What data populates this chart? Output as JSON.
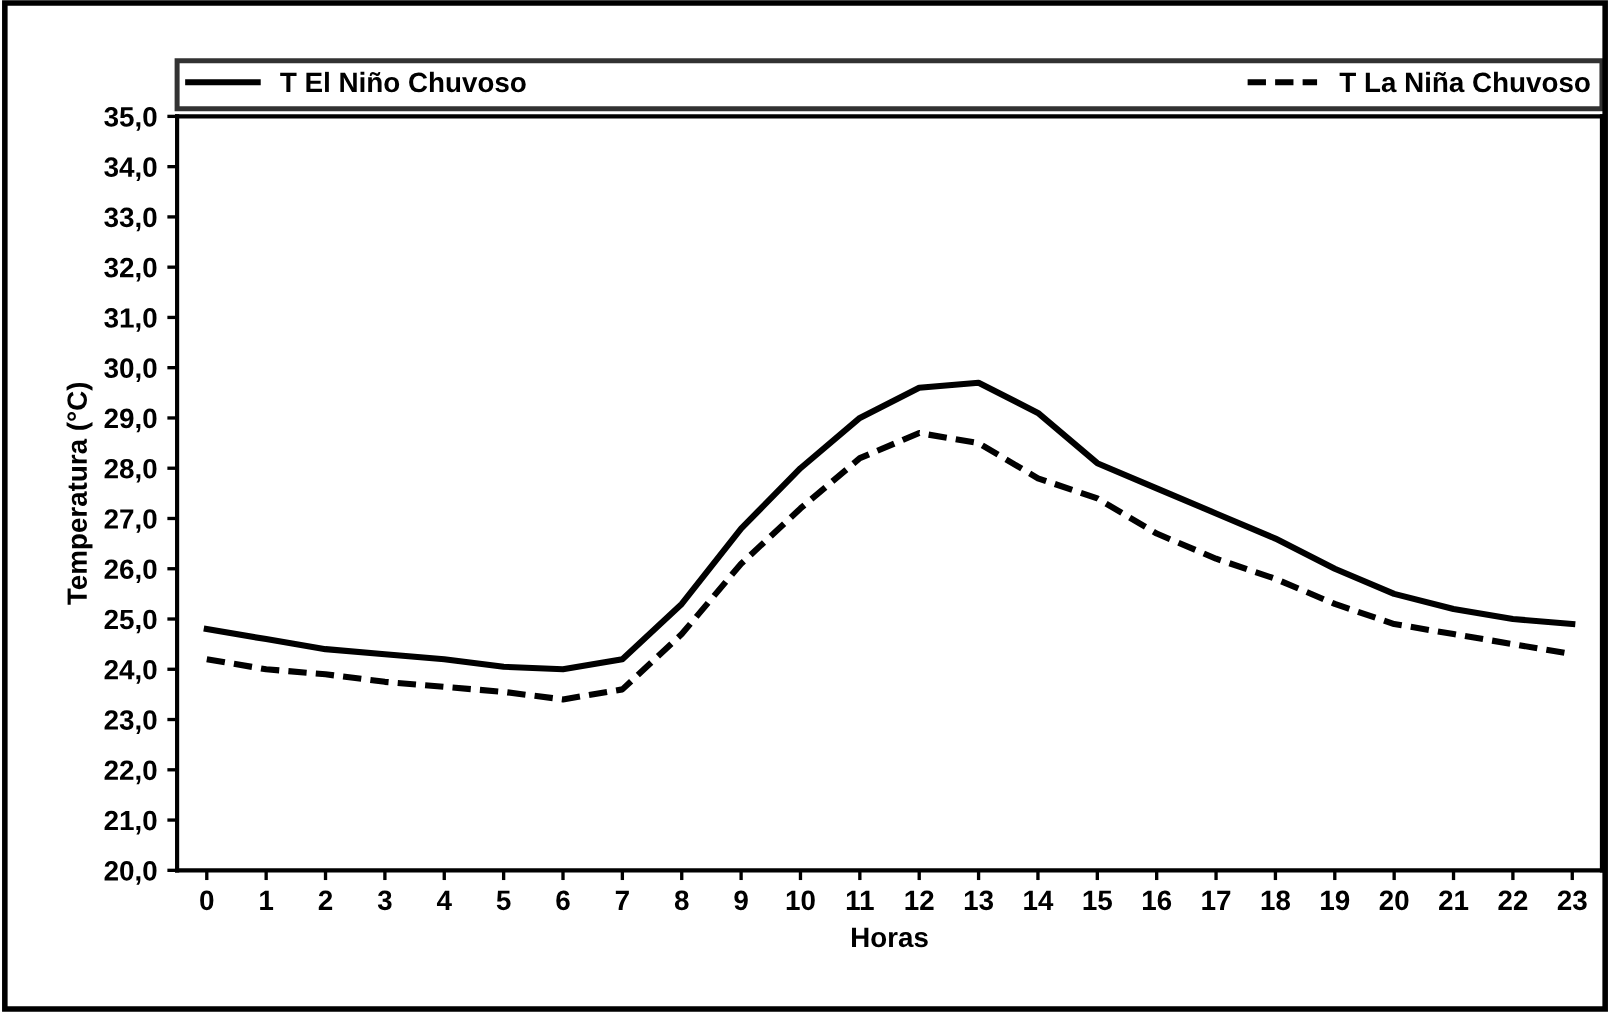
{
  "chart_data": {
    "type": "line",
    "xlabel": "Horas",
    "ylabel": "Temperatura (°C)",
    "categories": [
      "0",
      "1",
      "2",
      "3",
      "4",
      "5",
      "6",
      "7",
      "8",
      "9",
      "10",
      "11",
      "12",
      "13",
      "14",
      "15",
      "16",
      "17",
      "18",
      "19",
      "20",
      "21",
      "22",
      "23"
    ],
    "series": [
      {
        "name": "T El Niño Chuvoso",
        "color": "#000000",
        "line_style": "solid",
        "values": [
          24.8,
          24.6,
          24.4,
          24.3,
          24.2,
          24.05,
          24.0,
          24.2,
          25.3,
          26.8,
          28.0,
          29.0,
          29.6,
          29.7,
          29.1,
          28.1,
          27.6,
          27.1,
          26.6,
          26.0,
          25.5,
          25.2,
          25.0,
          24.9
        ]
      },
      {
        "name": "T La Niña Chuvoso",
        "color": "#000000",
        "line_style": "dashed",
        "values": [
          24.2,
          24.0,
          23.9,
          23.75,
          23.65,
          23.55,
          23.4,
          23.6,
          24.7,
          26.1,
          27.2,
          28.2,
          28.7,
          28.5,
          27.8,
          27.4,
          26.7,
          26.2,
          25.8,
          25.3,
          24.9,
          24.7,
          24.5,
          24.3
        ]
      }
    ],
    "ylim": [
      20,
      35
    ],
    "yticks": [
      {
        "value": 20,
        "label": "20,0"
      },
      {
        "value": 21,
        "label": "21,0"
      },
      {
        "value": 22,
        "label": "22,0"
      },
      {
        "value": 23,
        "label": "23,0"
      },
      {
        "value": 24,
        "label": "24,0"
      },
      {
        "value": 25,
        "label": "25,0"
      },
      {
        "value": 26,
        "label": "26,0"
      },
      {
        "value": 27,
        "label": "27,0"
      },
      {
        "value": 28,
        "label": "28,0"
      },
      {
        "value": 29,
        "label": "29,0"
      },
      {
        "value": 30,
        "label": "30,0"
      },
      {
        "value": 31,
        "label": "31,0"
      },
      {
        "value": 32,
        "label": "32,0"
      },
      {
        "value": 33,
        "label": "33,0"
      },
      {
        "value": 34,
        "label": "34,0"
      },
      {
        "value": 35,
        "label": "35,0"
      }
    ],
    "grid": false,
    "legend": "top",
    "marker": "none"
  }
}
